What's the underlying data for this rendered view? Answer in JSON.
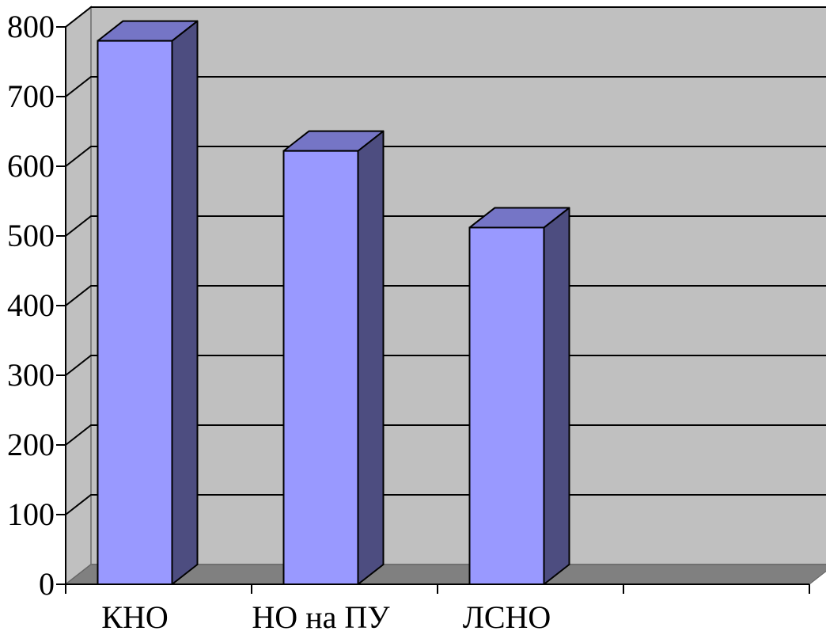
{
  "chart_data": {
    "type": "bar",
    "categories": [
      "КНО",
      "НО на ПУ",
      "ЛСНО",
      ""
    ],
    "series": [
      {
        "values": [
          780,
          622,
          512,
          null
        ]
      }
    ],
    "title": "",
    "xlabel": "",
    "ylabel": "",
    "ylim": [
      0,
      800
    ],
    "yticks": [
      0,
      100,
      200,
      300,
      400,
      500,
      600,
      700,
      800
    ],
    "grid": true,
    "legend": "none",
    "style": "3d-column",
    "colors": {
      "bar_front": "#9999ff",
      "bar_side": "#4d4d80",
      "bar_top": "#7575c6",
      "wall": "#c0c0c0",
      "floor": "#808080"
    }
  }
}
